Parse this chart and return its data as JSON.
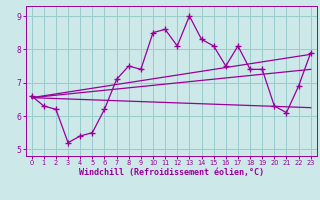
{
  "xlabel": "Windchill (Refroidissement éolien,°C)",
  "background_color": "#cce8e8",
  "grid_color": "#99cccc",
  "line_color": "#990099",
  "xlim": [
    -0.5,
    23.5
  ],
  "ylim": [
    4.8,
    9.3
  ],
  "xticks": [
    0,
    1,
    2,
    3,
    4,
    5,
    6,
    7,
    8,
    9,
    10,
    11,
    12,
    13,
    14,
    15,
    16,
    17,
    18,
    19,
    20,
    21,
    22,
    23
  ],
  "yticks": [
    5,
    6,
    7,
    8,
    9
  ],
  "main_series_x": [
    0,
    1,
    2,
    3,
    4,
    5,
    6,
    7,
    8,
    9,
    10,
    11,
    12,
    13,
    14,
    15,
    16,
    17,
    18,
    19,
    20,
    21,
    22,
    23
  ],
  "main_series_y": [
    6.6,
    6.3,
    6.2,
    5.2,
    5.4,
    5.5,
    6.2,
    7.1,
    7.5,
    7.4,
    8.5,
    8.6,
    8.1,
    9.0,
    8.3,
    8.1,
    7.5,
    8.1,
    7.4,
    7.4,
    6.3,
    6.1,
    6.9,
    7.9
  ],
  "line1_x": [
    0,
    23
  ],
  "line1_y": [
    6.55,
    7.85
  ],
  "line2_x": [
    0,
    23
  ],
  "line2_y": [
    6.55,
    6.25
  ],
  "line3_x": [
    0,
    23
  ],
  "line3_y": [
    6.55,
    7.4
  ]
}
